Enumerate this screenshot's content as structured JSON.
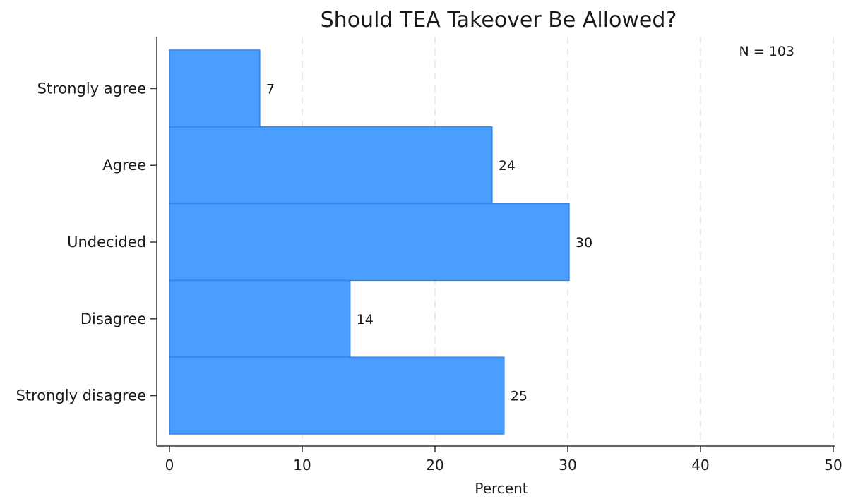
{
  "chart_data": {
    "type": "bar",
    "orientation": "horizontal",
    "title": "Should TEA Takeover Be Allowed?",
    "xlabel": "Percent",
    "ylabel": "",
    "categories": [
      "Strongly agree",
      "Agree",
      "Undecided",
      "Disagree",
      "Strongly disagree"
    ],
    "values": [
      6.8,
      24.3,
      30.1,
      13.6,
      25.2
    ],
    "data_labels": [
      "7",
      "24",
      "30",
      "14",
      "25"
    ],
    "xlim": [
      0,
      50
    ],
    "xticks": [
      0,
      10,
      20,
      30,
      40,
      50
    ],
    "grid": "vertical dashed",
    "annotation": "N = 103",
    "colors": {
      "bar_fill": "#4a9eff",
      "bar_edge": "#2f86ee"
    }
  }
}
